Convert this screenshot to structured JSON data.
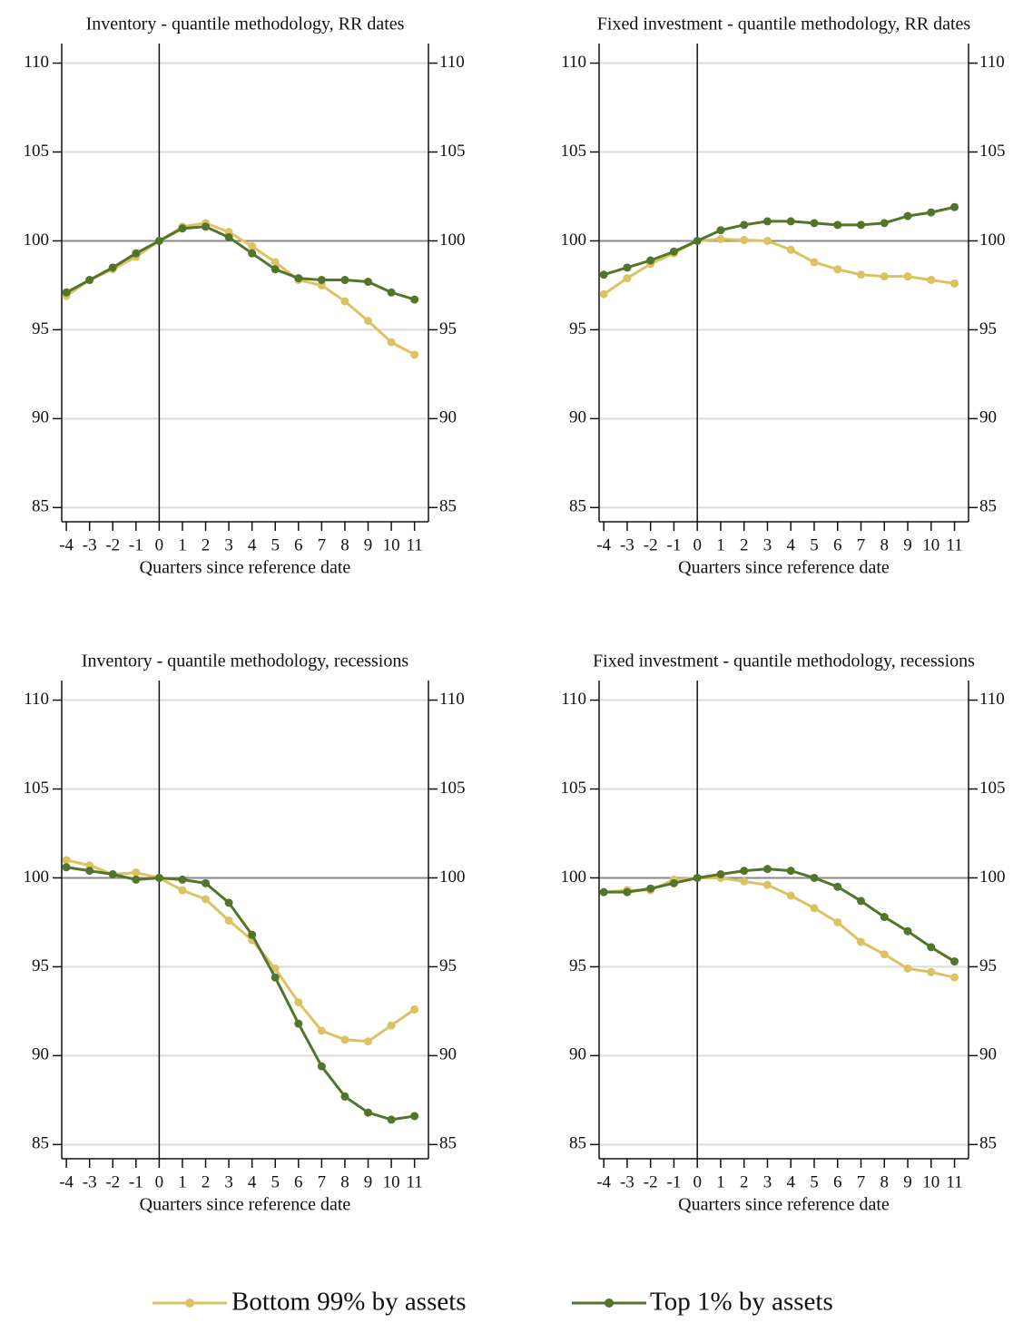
{
  "chart_data": [
    {
      "type": "line",
      "title": "Inventory - quantile methodology, RR dates",
      "xlabel": "Quarters since reference date",
      "x": [
        -4,
        -3,
        -2,
        -1,
        0,
        1,
        2,
        3,
        4,
        5,
        6,
        7,
        8,
        9,
        10,
        11
      ],
      "series": [
        {
          "name": "Bottom 99% by assets",
          "color": "#dcc262",
          "values": [
            96.9,
            97.8,
            98.4,
            99.1,
            100,
            100.8,
            101.0,
            100.5,
            99.7,
            98.8,
            97.8,
            97.5,
            96.6,
            95.5,
            94.3,
            93.6
          ]
        },
        {
          "name": "Top 1% by assets",
          "color": "#52752a",
          "values": [
            97.1,
            97.8,
            98.5,
            99.3,
            100,
            100.7,
            100.8,
            100.2,
            99.3,
            98.4,
            97.9,
            97.8,
            97.8,
            97.7,
            97.1,
            96.7
          ]
        }
      ],
      "xlim": [
        -4.2,
        11.6
      ],
      "xticks": [
        -4,
        -3,
        -2,
        -1,
        0,
        1,
        2,
        3,
        4,
        5,
        6,
        7,
        8,
        9,
        10,
        11
      ],
      "ylim": [
        84.2,
        111.1
      ],
      "yticks": [
        85,
        90,
        95,
        100,
        105,
        110
      ],
      "grid": true,
      "hline": 100,
      "vline": 0
    },
    {
      "type": "line",
      "title": "Fixed investment - quantile methodology, RR dates",
      "xlabel": "Quarters since reference date",
      "x": [
        -4,
        -3,
        -2,
        -1,
        0,
        1,
        2,
        3,
        4,
        5,
        6,
        7,
        8,
        9,
        10,
        11
      ],
      "series": [
        {
          "name": "Bottom 99% by assets",
          "color": "#dcc262",
          "values": [
            97.0,
            97.9,
            98.7,
            99.3,
            100,
            100.1,
            100.05,
            100.0,
            99.5,
            98.8,
            98.4,
            98.1,
            98.0,
            98.0,
            97.8,
            97.6
          ]
        },
        {
          "name": "Top 1% by assets",
          "color": "#52752a",
          "values": [
            98.1,
            98.5,
            98.9,
            99.4,
            100,
            100.6,
            100.9,
            101.1,
            101.1,
            101.0,
            100.9,
            100.9,
            101.0,
            101.4,
            101.6,
            101.9
          ]
        }
      ],
      "xlim": [
        -4.2,
        11.6
      ],
      "xticks": [
        -4,
        -3,
        -2,
        -1,
        0,
        1,
        2,
        3,
        4,
        5,
        6,
        7,
        8,
        9,
        10,
        11
      ],
      "ylim": [
        84.2,
        111.1
      ],
      "yticks": [
        85,
        90,
        95,
        100,
        105,
        110
      ],
      "grid": true,
      "hline": 100,
      "vline": 0
    },
    {
      "type": "line",
      "title": "Inventory - quantile methodology, recessions",
      "xlabel": "Quarters since reference date",
      "x": [
        -4,
        -3,
        -2,
        -1,
        0,
        1,
        2,
        3,
        4,
        5,
        6,
        7,
        8,
        9,
        10,
        11
      ],
      "series": [
        {
          "name": "Bottom 99% by assets",
          "color": "#dcc262",
          "values": [
            101.0,
            100.7,
            100.2,
            100.3,
            100,
            99.3,
            98.8,
            97.6,
            96.5,
            94.9,
            93.0,
            91.4,
            90.9,
            90.8,
            91.7,
            92.6
          ]
        },
        {
          "name": "Top 1% by assets",
          "color": "#52752a",
          "values": [
            100.6,
            100.4,
            100.2,
            99.9,
            100,
            99.9,
            99.7,
            98.6,
            96.8,
            94.4,
            91.8,
            89.4,
            87.7,
            86.8,
            86.4,
            86.6
          ]
        }
      ],
      "xlim": [
        -4.2,
        11.6
      ],
      "xticks": [
        -4,
        -3,
        -2,
        -1,
        0,
        1,
        2,
        3,
        4,
        5,
        6,
        7,
        8,
        9,
        10,
        11
      ],
      "ylim": [
        84.2,
        111.1
      ],
      "yticks": [
        85,
        90,
        95,
        100,
        105,
        110
      ],
      "grid": true,
      "hline": 100,
      "vline": 0
    },
    {
      "type": "line",
      "title": "Fixed investment - quantile methodology, recessions",
      "xlabel": "Quarters since reference date",
      "x": [
        -4,
        -3,
        -2,
        -1,
        0,
        1,
        2,
        3,
        4,
        5,
        6,
        7,
        8,
        9,
        10,
        11
      ],
      "series": [
        {
          "name": "Bottom 99% by assets",
          "color": "#dcc262",
          "values": [
            99.2,
            99.3,
            99.3,
            99.9,
            100,
            100.0,
            99.8,
            99.6,
            99.0,
            98.3,
            97.5,
            96.4,
            95.7,
            94.9,
            94.7,
            94.4
          ]
        },
        {
          "name": "Top 1% by assets",
          "color": "#52752a",
          "values": [
            99.2,
            99.2,
            99.4,
            99.7,
            100,
            100.2,
            100.4,
            100.5,
            100.4,
            100.0,
            99.5,
            98.7,
            97.8,
            97.0,
            96.1,
            95.3
          ]
        }
      ],
      "xlim": [
        -4.2,
        11.6
      ],
      "xticks": [
        -4,
        -3,
        -2,
        -1,
        0,
        1,
        2,
        3,
        4,
        5,
        6,
        7,
        8,
        9,
        10,
        11
      ],
      "ylim": [
        84.2,
        111.1
      ],
      "yticks": [
        85,
        90,
        95,
        100,
        105,
        110
      ],
      "grid": true,
      "hline": 100,
      "vline": 0
    }
  ]
}
